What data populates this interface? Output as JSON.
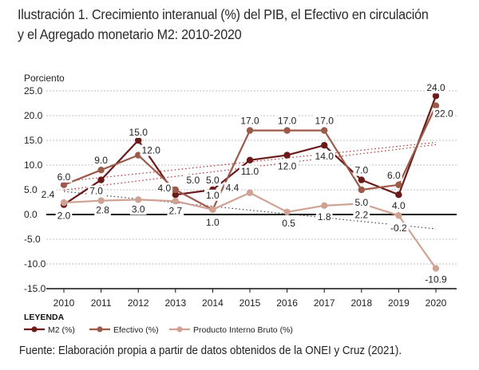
{
  "title": "Ilustración 1. Crecimiento interanual (%) del PIB, el Efectivo en circulación y el Agregado monetario M2: 2010-2020",
  "source": "Fuente: Elaboración propia a partir de datos obtenidos de la ONEI y Cruz (2021).",
  "chart_data": {
    "type": "line",
    "ylabel": "Porciento",
    "categories": [
      "2010",
      "2011",
      "2012",
      "2013",
      "2014",
      "2015",
      "2016",
      "2017",
      "2018",
      "2019",
      "2020"
    ],
    "ylim": [
      -15,
      25
    ],
    "yticks": [
      "25.0",
      "20.0",
      "15.0",
      "10.0",
      "5.0",
      "0.0",
      "-5.0",
      "-10.0",
      "-15.0"
    ],
    "legend_title": "LEYENDA",
    "legend_position": "bottom-left",
    "series": [
      {
        "name": "M2 (%)",
        "color": "#6b1a1a",
        "values": [
          2.0,
          7.0,
          15.0,
          4.0,
          5.0,
          11.0,
          12.0,
          14.0,
          7.0,
          4.0,
          24.0
        ],
        "labels": [
          "2.0",
          "7.0",
          "15.0",
          "4.0",
          "5.0",
          "11.0",
          "12.0",
          "14.0",
          "7.0",
          "4.0",
          "24.0"
        ]
      },
      {
        "name": "Efectivo (%)",
        "color": "#9c5a4a",
        "values": [
          6.0,
          9.0,
          12.0,
          5.0,
          1.0,
          17.0,
          17.0,
          17.0,
          5.0,
          6.0,
          22.0
        ],
        "labels": [
          "6.0",
          "9.0",
          "12.0",
          "5.0",
          "1.0",
          "17.0",
          "17.0",
          "17.0",
          "5.0",
          "6.0",
          "22.0"
        ]
      },
      {
        "name": "Producto Interno Bruto (%)",
        "color": "#d0a294",
        "values": [
          2.4,
          2.8,
          3.0,
          2.7,
          1.0,
          4.4,
          0.5,
          1.8,
          2.2,
          -0.2,
          -10.9
        ],
        "labels": [
          "2.4",
          "2.8",
          "3.0",
          "2.7",
          "1.0",
          "4.4",
          "0.5",
          "1.8",
          "2.2",
          "-0.2",
          "-10.9"
        ]
      }
    ],
    "label_offsets": {
      "M2 (%)": [
        [
          0,
          14
        ],
        [
          -6,
          14
        ],
        [
          0,
          -10
        ],
        [
          -14,
          -8
        ],
        [
          0,
          -12
        ],
        [
          0,
          14
        ],
        [
          0,
          14
        ],
        [
          0,
          14
        ],
        [
          0,
          -12
        ],
        [
          0,
          14
        ],
        [
          0,
          -10
        ]
      ],
      "Efectivo (%)": [
        [
          0,
          -10
        ],
        [
          0,
          -12
        ],
        [
          16,
          -6
        ],
        [
          22,
          -12
        ],
        [
          0,
          16
        ],
        [
          0,
          -12
        ],
        [
          0,
          -12
        ],
        [
          0,
          -12
        ],
        [
          0,
          16
        ],
        [
          -6,
          -12
        ],
        [
          10,
          10
        ]
      ],
      "Producto Interno Bruto (%)": [
        [
          -20,
          -10
        ],
        [
          2,
          12
        ],
        [
          0,
          12
        ],
        [
          0,
          12
        ],
        [
          0,
          -18
        ],
        [
          -22,
          -6
        ],
        [
          2,
          14
        ],
        [
          0,
          14
        ],
        [
          0,
          14
        ],
        [
          0,
          16
        ],
        [
          0,
          14
        ]
      ]
    }
  }
}
